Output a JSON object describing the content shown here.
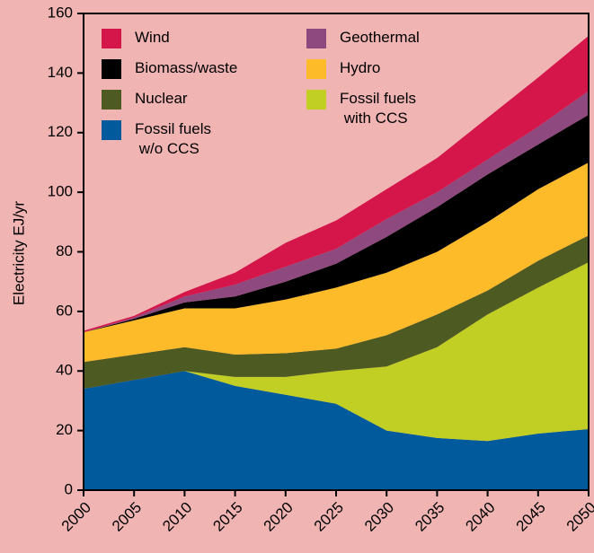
{
  "chart_data": {
    "type": "stacked_area",
    "y_label": "Electricity EJ/yr",
    "x": [
      2000,
      2005,
      2010,
      2015,
      2020,
      2025,
      2030,
      2035,
      2040,
      2045,
      2050
    ],
    "xlim": [
      2000,
      2050
    ],
    "xticks": [
      2000,
      2005,
      2010,
      2015,
      2020,
      2025,
      2030,
      2035,
      2040,
      2045,
      2050
    ],
    "ylim": [
      0,
      160
    ],
    "yticks": [
      0,
      20,
      40,
      60,
      80,
      100,
      120,
      140,
      160
    ],
    "series": [
      {
        "name": "Fossil fuels w/o CCS",
        "color": "#005a9c",
        "values": [
          34,
          37,
          40,
          35,
          32,
          29,
          20,
          17.5,
          16.5,
          19,
          20.5
        ]
      },
      {
        "name": "Fossil fuels with CCS",
        "color": "#c1cf24",
        "values": [
          0,
          0,
          0,
          3,
          6,
          11,
          21.5,
          30.5,
          42.5,
          49,
          56
        ]
      },
      {
        "name": "Nuclear",
        "color": "#4d5b23",
        "values": [
          9,
          8.5,
          8,
          7.5,
          8,
          7.5,
          10.5,
          11,
          8,
          9,
          9
        ]
      },
      {
        "name": "Hydro",
        "color": "#fdbb2a",
        "values": [
          10,
          11.5,
          13,
          15.5,
          18,
          20.5,
          21,
          21,
          23,
          24,
          24.5
        ]
      },
      {
        "name": "Biomass/waste",
        "color": "#000000",
        "values": [
          0,
          0.5,
          2,
          4,
          6,
          8,
          12,
          15,
          16,
          15,
          16
        ]
      },
      {
        "name": "Geothermal",
        "color": "#8e4a7e",
        "values": [
          0,
          0.5,
          2,
          4,
          5,
          5,
          6,
          5,
          5,
          6,
          8
        ]
      },
      {
        "name": "Wind",
        "color": "#d5164b",
        "values": [
          0.5,
          0.5,
          1.5,
          4,
          8,
          9.5,
          10,
          11.5,
          14,
          16.5,
          18.5
        ]
      }
    ]
  }
}
